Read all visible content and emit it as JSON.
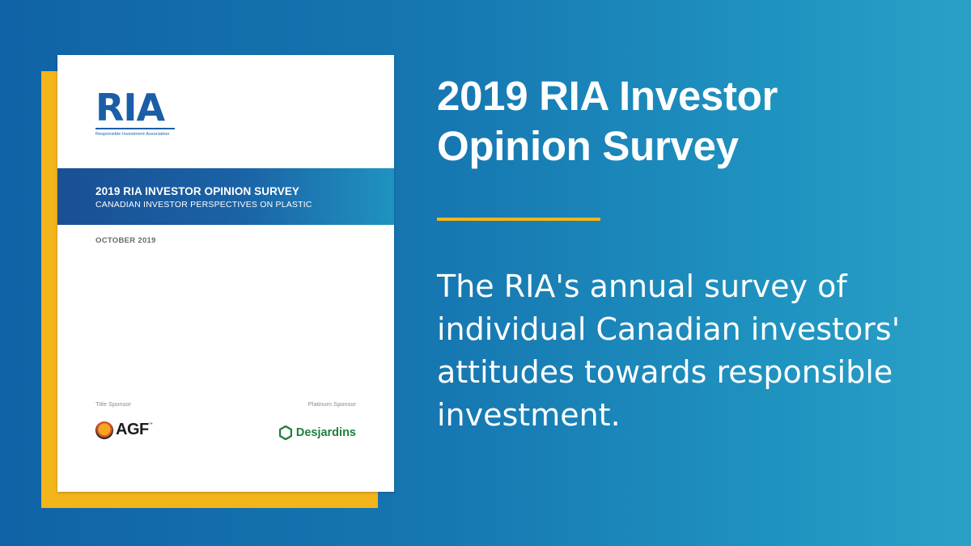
{
  "report": {
    "logo_text": "RIA",
    "logo_tagline": "Responsible Investment Association",
    "banner_title": "2019 RIA INVESTOR OPINION SURVEY",
    "banner_subtitle": "CANADIAN INVESTOR PERSPECTIVES ON PLASTIC",
    "date": "OCTOBER 2019",
    "title_sponsor_label": "Title Sponsor",
    "title_sponsor_name": "AGF",
    "title_sponsor_tm": "™",
    "platinum_sponsor_label": "Platinum Sponsor",
    "platinum_sponsor_name": "Desjardins"
  },
  "headline": "2019 RIA Investor Opinion Survey",
  "description": "The RIA's annual survey of individual Canadian investors' attitudes towards responsible investment.",
  "colors": {
    "background_start": "#1063a6",
    "background_end": "#2aa0c7",
    "accent_gold": "#f2b51a",
    "ria_blue": "#1a5ea8",
    "desjardins_green": "#1f7f3d"
  },
  "icons": {
    "agf_logo": "tiger-icon",
    "desjardins_logo": "hexagon-icon"
  }
}
